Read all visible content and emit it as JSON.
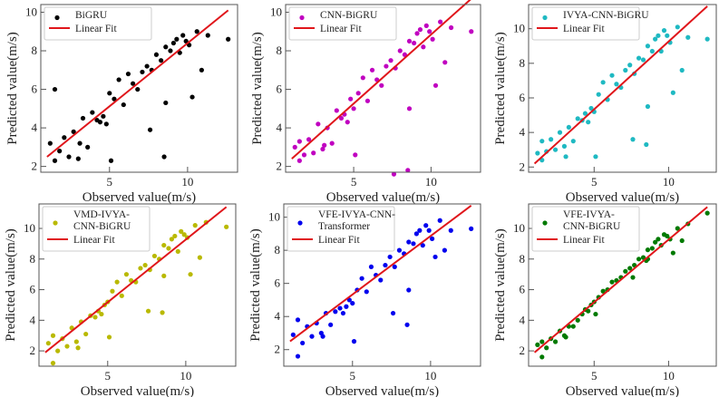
{
  "chart_data": [
    {
      "type": "scatter",
      "xlabel": "Observed value(m/s)",
      "ylabel": "Predicted value(m/s)",
      "xlim": [
        0.6,
        13.2
      ],
      "ylim": [
        1.7,
        10.4
      ],
      "xticks": [
        5,
        10
      ],
      "yticks": [
        2,
        4,
        6,
        8,
        10
      ],
      "legend": [
        "BiGRU",
        "Linear Fit"
      ],
      "legend_placement": "top-left",
      "color": "#000000",
      "fit_color": "#e0161b",
      "fit": [
        [
          1,
          2.5
        ],
        [
          12.6,
          10.1
        ]
      ],
      "x": [
        1.2,
        1.5,
        1.8,
        2.1,
        2.4,
        2.7,
        3.0,
        3.3,
        3.6,
        3.9,
        4.2,
        4.4,
        4.6,
        4.8,
        5.0,
        5.3,
        5.6,
        5.9,
        6.2,
        6.5,
        6.8,
        7.1,
        7.4,
        7.7,
        8.0,
        8.3,
        8.6,
        8.9,
        9.1,
        9.3,
        9.5,
        9.7,
        9.9,
        10.1,
        10.3,
        10.6,
        10.9,
        11.3,
        12.6,
        1.5,
        3.1,
        5.1,
        8.5,
        8.6,
        7.6
      ],
      "y": [
        3.2,
        6.0,
        2.8,
        3.5,
        2.5,
        3.8,
        2.4,
        4.5,
        3.0,
        4.8,
        4.4,
        4.3,
        4.6,
        4.2,
        5.8,
        5.5,
        6.5,
        5.2,
        6.8,
        6.3,
        6.0,
        6.9,
        7.2,
        7.0,
        7.8,
        7.5,
        8.2,
        8.0,
        8.4,
        8.6,
        7.9,
        8.8,
        8.5,
        8.3,
        5.6,
        9.0,
        7.0,
        8.8,
        8.6,
        2.3,
        3.2,
        2.3,
        2.5,
        5.3,
        3.9
      ]
    },
    {
      "type": "scatter",
      "xlabel": "Observed value(m/s)",
      "ylabel": "Predicted value(m/s)",
      "xlim": [
        0.6,
        13.2
      ],
      "ylim": [
        1.7,
        10.4
      ],
      "xticks": [
        5,
        10
      ],
      "yticks": [
        2,
        4,
        6,
        8,
        10
      ],
      "legend": [
        "CNN-BiGRU",
        "Linear Fit"
      ],
      "legend_placement": "top-left",
      "color": "#c000c0",
      "fit_color": "#e0161b",
      "fit": [
        [
          1,
          2.4
        ],
        [
          12.6,
          10.7
        ]
      ],
      "x": [
        1.2,
        1.5,
        1.8,
        2.1,
        2.4,
        2.7,
        3.0,
        3.3,
        3.6,
        3.9,
        4.2,
        4.4,
        4.6,
        4.8,
        5.0,
        5.3,
        5.6,
        5.9,
        6.2,
        6.5,
        6.8,
        7.1,
        7.4,
        7.7,
        8.0,
        8.3,
        8.6,
        8.9,
        9.1,
        9.3,
        9.5,
        9.7,
        9.9,
        10.1,
        10.3,
        10.6,
        10.9,
        11.3,
        12.6,
        1.5,
        3.1,
        5.1,
        8.5,
        8.6,
        7.6
      ],
      "y": [
        3.0,
        3.3,
        2.6,
        3.4,
        2.7,
        4.2,
        2.9,
        4.0,
        3.2,
        4.9,
        4.5,
        4.7,
        4.3,
        5.5,
        5.0,
        5.8,
        6.6,
        5.4,
        7.0,
        6.5,
        6.2,
        7.2,
        7.5,
        7.1,
        8.0,
        7.8,
        8.5,
        8.4,
        8.9,
        9.1,
        8.2,
        9.3,
        9.0,
        8.6,
        6.2,
        9.5,
        7.4,
        9.2,
        9.0,
        2.3,
        3.1,
        2.6,
        1.8,
        5.0,
        1.6
      ]
    },
    {
      "type": "scatter",
      "xlabel": "Observed value(m/s)",
      "ylabel": "Predicted value(m/s)",
      "xlim": [
        0.6,
        13.2
      ],
      "ylim": [
        1.7,
        11.4
      ],
      "xticks": [
        5,
        10
      ],
      "yticks": [
        2,
        4,
        6,
        8,
        10
      ],
      "legend": [
        "IVYA-CNN-BiGRU",
        "Linear Fit"
      ],
      "legend_placement": "top-left",
      "color": "#1fb9c2",
      "fit_color": "#e0161b",
      "fit": [
        [
          1,
          2.2
        ],
        [
          12.6,
          11.3
        ]
      ],
      "x": [
        1.2,
        1.5,
        1.8,
        2.1,
        2.4,
        2.7,
        3.0,
        3.3,
        3.6,
        3.9,
        4.2,
        4.4,
        4.6,
        4.8,
        5.0,
        5.3,
        5.6,
        5.9,
        6.2,
        6.5,
        6.8,
        7.1,
        7.4,
        7.7,
        8.0,
        8.3,
        8.6,
        8.9,
        9.1,
        9.3,
        9.5,
        9.7,
        9.9,
        10.1,
        10.3,
        10.6,
        10.9,
        11.3,
        12.6,
        1.5,
        3.1,
        5.1,
        8.5,
        8.6,
        7.6
      ],
      "y": [
        2.8,
        3.5,
        2.9,
        3.6,
        3.0,
        4.0,
        3.2,
        4.3,
        3.5,
        4.8,
        4.7,
        5.1,
        4.6,
        5.4,
        5.2,
        6.2,
        6.9,
        5.9,
        7.3,
        6.8,
        6.6,
        7.6,
        7.9,
        7.4,
        8.3,
        8.2,
        9.0,
        8.7,
        9.4,
        9.6,
        8.7,
        9.9,
        9.6,
        9.2,
        6.3,
        10.1,
        7.6,
        9.5,
        9.4,
        2.4,
        2.6,
        2.6,
        3.3,
        5.5,
        3.6
      ]
    },
    {
      "type": "scatter",
      "xlabel": "Observed value(m/s)",
      "ylabel": "Predicted value(m/s)",
      "xlim": [
        0.6,
        13.2
      ],
      "ylim": [
        1.0,
        11.6
      ],
      "xticks": [
        5,
        10
      ],
      "yticks": [
        2,
        4,
        6,
        8,
        10
      ],
      "legend": [
        "VMD-IVYA-\nCNN-BiGRU",
        "Linear Fit"
      ],
      "legend_placement": "top-left",
      "color": "#b9b900",
      "fit_color": "#e0161b",
      "fit": [
        [
          1,
          1.9
        ],
        [
          12.6,
          11.4
        ]
      ],
      "x": [
        1.2,
        1.5,
        1.8,
        2.1,
        2.4,
        2.7,
        3.0,
        3.3,
        3.6,
        3.9,
        4.2,
        4.4,
        4.6,
        4.8,
        5.0,
        5.3,
        5.6,
        5.9,
        6.2,
        6.5,
        6.8,
        7.1,
        7.4,
        7.7,
        8.0,
        8.3,
        8.6,
        8.9,
        9.1,
        9.3,
        9.5,
        9.7,
        9.9,
        10.1,
        10.3,
        10.6,
        10.9,
        11.3,
        12.6,
        1.5,
        3.1,
        5.1,
        8.5,
        8.6,
        7.6
      ],
      "y": [
        2.5,
        3.0,
        2.0,
        2.8,
        2.3,
        3.5,
        2.6,
        3.9,
        3.1,
        4.3,
        4.2,
        4.6,
        4.4,
        5.0,
        5.2,
        5.9,
        6.5,
        5.6,
        7.0,
        6.6,
        6.5,
        7.4,
        7.6,
        7.3,
        8.2,
        8.0,
        8.9,
        8.7,
        9.3,
        9.5,
        8.5,
        9.8,
        9.6,
        9.4,
        7.0,
        10.2,
        8.1,
        10.4,
        10.1,
        1.2,
        2.2,
        2.9,
        4.5,
        6.9,
        4.6
      ]
    },
    {
      "type": "scatter",
      "xlabel": "Observed value(m/s)",
      "ylabel": "Predicted value(m/s)",
      "xlim": [
        0.6,
        13.2
      ],
      "ylim": [
        1.0,
        10.8
      ],
      "xticks": [
        5,
        10
      ],
      "yticks": [
        2,
        4,
        6,
        8,
        10
      ],
      "legend": [
        "VFE-IVYA-CNN-\nTransformer",
        "Linear Fit"
      ],
      "legend_placement": "top-left",
      "color": "#0000ee",
      "fit_color": "#e0161b",
      "fit": [
        [
          1,
          2.5
        ],
        [
          12.6,
          10.7
        ]
      ],
      "x": [
        1.2,
        1.5,
        1.8,
        2.1,
        2.4,
        2.7,
        3.0,
        3.3,
        3.6,
        3.9,
        4.2,
        4.4,
        4.6,
        4.8,
        5.0,
        5.3,
        5.6,
        5.9,
        6.2,
        6.5,
        6.8,
        7.1,
        7.4,
        7.7,
        8.0,
        8.3,
        8.6,
        8.9,
        9.1,
        9.3,
        9.5,
        9.7,
        9.9,
        10.1,
        10.3,
        10.6,
        10.9,
        11.3,
        12.6,
        1.5,
        3.1,
        5.1,
        8.5,
        8.6,
        7.6
      ],
      "y": [
        2.9,
        3.8,
        2.4,
        3.4,
        2.8,
        3.6,
        3.0,
        4.2,
        3.5,
        4.3,
        4.5,
        4.2,
        4.6,
        5.0,
        4.8,
        5.6,
        6.3,
        5.5,
        7.0,
        6.5,
        6.2,
        7.1,
        7.6,
        7.0,
        8.0,
        7.8,
        8.5,
        8.4,
        9.0,
        9.2,
        8.3,
        9.5,
        9.2,
        8.7,
        7.6,
        9.8,
        8.0,
        9.2,
        9.3,
        1.6,
        2.8,
        2.5,
        3.5,
        5.6,
        4.2
      ]
    },
    {
      "type": "scatter",
      "xlabel": "Observed value(m/s)",
      "ylabel": "Predicted value(m/s)",
      "xlim": [
        0.6,
        13.2
      ],
      "ylim": [
        1.0,
        11.6
      ],
      "xticks": [
        5,
        10
      ],
      "yticks": [
        2,
        4,
        6,
        8,
        10
      ],
      "legend": [
        "VFE-IVYA-\nCNN-BiGRU",
        "Linear Fit"
      ],
      "legend_placement": "top-left",
      "color": "#007a00",
      "fit_color": "#e0161b",
      "fit": [
        [
          1,
          1.9
        ],
        [
          12.6,
          11.4
        ]
      ],
      "x": [
        1.2,
        1.5,
        1.8,
        2.1,
        2.4,
        2.7,
        3.0,
        3.3,
        3.6,
        3.9,
        4.2,
        4.4,
        4.6,
        4.8,
        5.0,
        5.3,
        5.6,
        5.9,
        6.2,
        6.5,
        6.8,
        7.1,
        7.4,
        7.7,
        8.0,
        8.3,
        8.6,
        8.9,
        9.1,
        9.3,
        9.5,
        9.7,
        9.9,
        10.1,
        10.3,
        10.6,
        10.9,
        11.3,
        12.6,
        1.5,
        3.1,
        5.1,
        8.5,
        8.6,
        7.6
      ],
      "y": [
        2.4,
        2.6,
        2.2,
        2.8,
        2.6,
        3.3,
        3.0,
        3.6,
        3.6,
        4.0,
        4.4,
        4.7,
        4.6,
        5.0,
        5.2,
        5.5,
        5.9,
        6.0,
        6.5,
        6.6,
        6.8,
        7.2,
        7.4,
        7.6,
        8.0,
        8.1,
        8.6,
        8.7,
        9.1,
        9.3,
        8.9,
        9.6,
        9.5,
        9.3,
        8.4,
        10.0,
        9.2,
        10.3,
        11.0,
        1.6,
        2.9,
        4.4,
        7.9,
        8.0,
        6.8
      ]
    }
  ]
}
